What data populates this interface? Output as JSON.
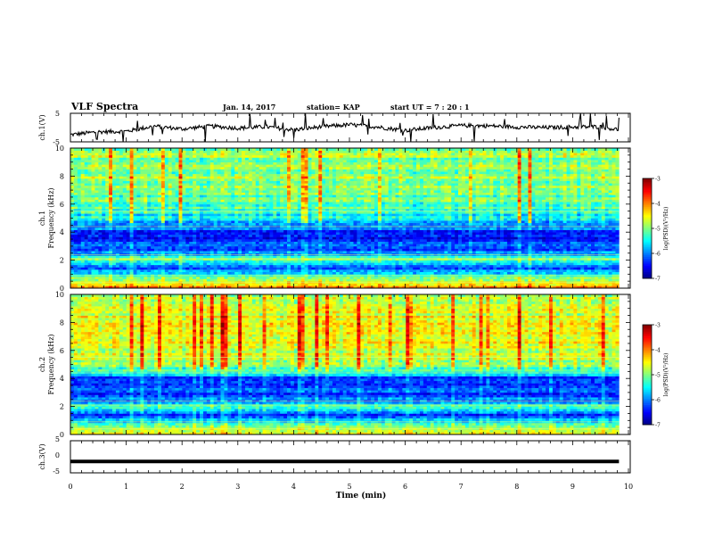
{
  "header": {
    "title": "VLF Spectra",
    "date": "Jan. 14, 2017",
    "station": "station= KAP",
    "start": "start  UT =   7 : 20 : 1"
  },
  "colors": {
    "jet": [
      "#00007f",
      "#0000ff",
      "#007fff",
      "#00ffff",
      "#7fff7f",
      "#ffff00",
      "#ff7f00",
      "#ff0000",
      "#7f0000"
    ],
    "frame": "#000000"
  },
  "chart_data": [
    {
      "type": "line",
      "panel": "ch1-waveform",
      "ylabel": "ch.1(V)",
      "ylim": [
        -5,
        5
      ],
      "y_ticks": [
        "5",
        "-5"
      ],
      "x_range_min": [
        0,
        9.83
      ],
      "x": [
        0,
        0.5,
        1,
        1.5,
        2,
        2.5,
        3,
        3.5,
        4,
        4.5,
        5,
        5.5,
        6,
        6.5,
        7,
        7.5,
        8,
        8.5,
        9,
        9.5,
        9.83
      ],
      "values": [
        -2.5,
        -1.5,
        -1.3,
        0.5,
        -0.5,
        0.5,
        -0.2,
        0.3,
        -0.8,
        0.3,
        1.0,
        0.2,
        -1.0,
        0.0,
        0.7,
        0.6,
        0.2,
        0.0,
        0.2,
        0.3,
        -0.8
      ]
    },
    {
      "type": "heatmap",
      "panel": "ch1-spectrogram",
      "ylabel": "ch.1\nFrequency  (kHz)",
      "ylim": [
        0,
        10
      ],
      "y_ticks": [
        "0",
        "2",
        "4",
        "6",
        "8",
        "10"
      ],
      "x_range_min": [
        0,
        9.83
      ],
      "colorbar": {
        "label": "log(PSD)(V²/Hz)",
        "range": [
          -7,
          -3
        ],
        "ticks": [
          "-3",
          "-4",
          "-5",
          "-6",
          "-7"
        ]
      },
      "freq_kHz": [
        0,
        0.5,
        1,
        1.5,
        2,
        2.5,
        3,
        3.5,
        4,
        4.5,
        5,
        5.5,
        6,
        6.5,
        7,
        7.5,
        8,
        8.5,
        9,
        9.5,
        10
      ],
      "mean_logpsd": [
        -4.0,
        -4.5,
        -5.8,
        -6.2,
        -5.0,
        -5.9,
        -6.3,
        -6.4,
        -6.3,
        -5.8,
        -5.6,
        -5.2,
        -5.3,
        -5.1,
        -5.0,
        -4.9,
        -4.9,
        -4.9,
        -4.9,
        -4.9,
        -4.9
      ]
    },
    {
      "type": "heatmap",
      "panel": "ch2-spectrogram",
      "ylabel": "ch.2\nFrequency  (kHz)",
      "ylim": [
        0,
        10
      ],
      "y_ticks": [
        "0",
        "2",
        "4",
        "6",
        "8",
        "10"
      ],
      "x_range_min": [
        0,
        9.83
      ],
      "colorbar": {
        "label": "log(PSD)(V²/Hz)",
        "range": [
          -7,
          -3
        ],
        "ticks": [
          "-3",
          "-4",
          "-5",
          "-6",
          "-7"
        ]
      },
      "freq_kHz": [
        0,
        0.5,
        1,
        1.5,
        2,
        2.5,
        3,
        3.5,
        4,
        4.5,
        5,
        5.5,
        6,
        6.5,
        7,
        7.5,
        8,
        8.5,
        9,
        9.5,
        10
      ],
      "mean_logpsd": [
        -4.2,
        -5.0,
        -5.8,
        -6.3,
        -5.2,
        -6.1,
        -6.2,
        -6.3,
        -6.4,
        -5.3,
        -5.0,
        -4.8,
        -4.7,
        -4.6,
        -4.5,
        -4.5,
        -4.5,
        -4.6,
        -4.6,
        -4.6,
        -4.7
      ]
    },
    {
      "type": "line",
      "panel": "ch3-waveform",
      "ylabel": "ch.3(V)",
      "ylim": [
        -5,
        5
      ],
      "y_ticks": [
        "5",
        "0",
        "-5"
      ],
      "x_range_min": [
        0,
        9.83
      ],
      "x": [
        0,
        9.83
      ],
      "values": [
        -2.0,
        -2.0
      ]
    }
  ],
  "x_axis": {
    "xlabel": "Time  (min)",
    "xlim": [
      0,
      10
    ],
    "ticks": [
      "0",
      "1",
      "2",
      "3",
      "4",
      "5",
      "6",
      "7",
      "8",
      "9",
      "10"
    ]
  }
}
